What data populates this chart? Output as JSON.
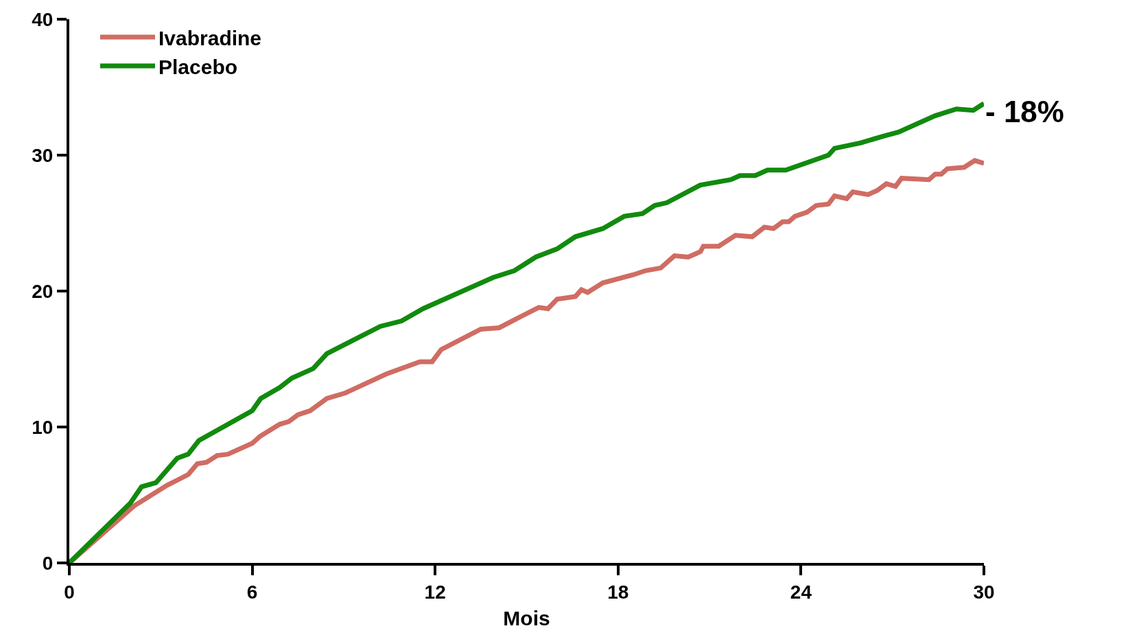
{
  "chart_data": {
    "type": "line",
    "xlabel": "Mois",
    "xlim": [
      0,
      30
    ],
    "xticks": [
      0,
      6,
      12,
      18,
      24,
      30
    ],
    "ylim": [
      0,
      40
    ],
    "yticks": [
      0,
      10,
      20,
      30,
      40
    ],
    "grid": false,
    "legend": "top left",
    "marker": "none",
    "line_style": "solid",
    "annotations": [
      "- 18%"
    ],
    "series": [
      {
        "name": "Ivabradine",
        "color": "#d06c63",
        "x": [
          0,
          2.13,
          3.2,
          3.9,
          4.2,
          4.5,
          4.85,
          5.2,
          6,
          6.25,
          6.9,
          7.2,
          7.5,
          7.9,
          8.45,
          9.05,
          10.4,
          11.5,
          11.9,
          12.2,
          13.5,
          14.1,
          14.7,
          15.4,
          15.7,
          16,
          16.6,
          16.8,
          17,
          17.5,
          18.5,
          18.9,
          19.4,
          19.85,
          20.3,
          20.7,
          20.8,
          21.3,
          21.85,
          22.4,
          22.8,
          23.1,
          23.4,
          23.6,
          23.8,
          24.2,
          24.5,
          24.9,
          25.1,
          25.5,
          25.7,
          26.2,
          26.5,
          26.8,
          27.1,
          27.3,
          28.2,
          28.4,
          28.6,
          28.8,
          29.35,
          29.7,
          30
        ],
        "values": [
          0,
          4.2,
          5.7,
          6.5,
          7.3,
          7.4,
          7.9,
          8.0,
          8.8,
          9.3,
          10.2,
          10.4,
          10.9,
          11.2,
          12.1,
          12.5,
          13.9,
          14.8,
          14.8,
          15.7,
          17.2,
          17.3,
          18.0,
          18.8,
          18.7,
          19.4,
          19.6,
          20.1,
          19.9,
          20.6,
          21.2,
          21.5,
          21.7,
          22.6,
          22.5,
          22.9,
          23.3,
          23.3,
          24.1,
          24.0,
          24.7,
          24.6,
          25.1,
          25.1,
          25.5,
          25.8,
          26.3,
          26.4,
          27.0,
          26.8,
          27.3,
          27.1,
          27.4,
          27.9,
          27.7,
          28.3,
          28.2,
          28.6,
          28.6,
          29.0,
          29.1,
          29.6,
          29.4
        ]
      },
      {
        "name": "Placebo",
        "color": "#118a0e",
        "x": [
          0,
          2.0,
          2.37,
          2.84,
          3.54,
          3.9,
          4.25,
          6,
          6.28,
          6.9,
          7.3,
          8.0,
          8.45,
          10.2,
          10.9,
          11.6,
          13.9,
          14.6,
          15.3,
          16,
          16.6,
          17.5,
          18.2,
          18.8,
          19.2,
          19.6,
          20.7,
          21.7,
          22,
          22.5,
          22.9,
          23.5,
          24.9,
          25.1,
          25.96,
          26.7,
          27.2,
          28.4,
          29.1,
          29.65,
          30
        ],
        "values": [
          0,
          4.4,
          5.6,
          5.9,
          7.7,
          8.0,
          9.0,
          11.2,
          12.1,
          12.9,
          13.6,
          14.3,
          15.4,
          17.4,
          17.8,
          18.7,
          21.0,
          21.5,
          22.5,
          23.1,
          24.0,
          24.6,
          25.5,
          25.7,
          26.3,
          26.5,
          27.8,
          28.2,
          28.5,
          28.5,
          28.9,
          28.9,
          30.0,
          30.5,
          30.9,
          31.4,
          31.7,
          32.9,
          33.4,
          33.3,
          33.8
        ]
      }
    ]
  }
}
